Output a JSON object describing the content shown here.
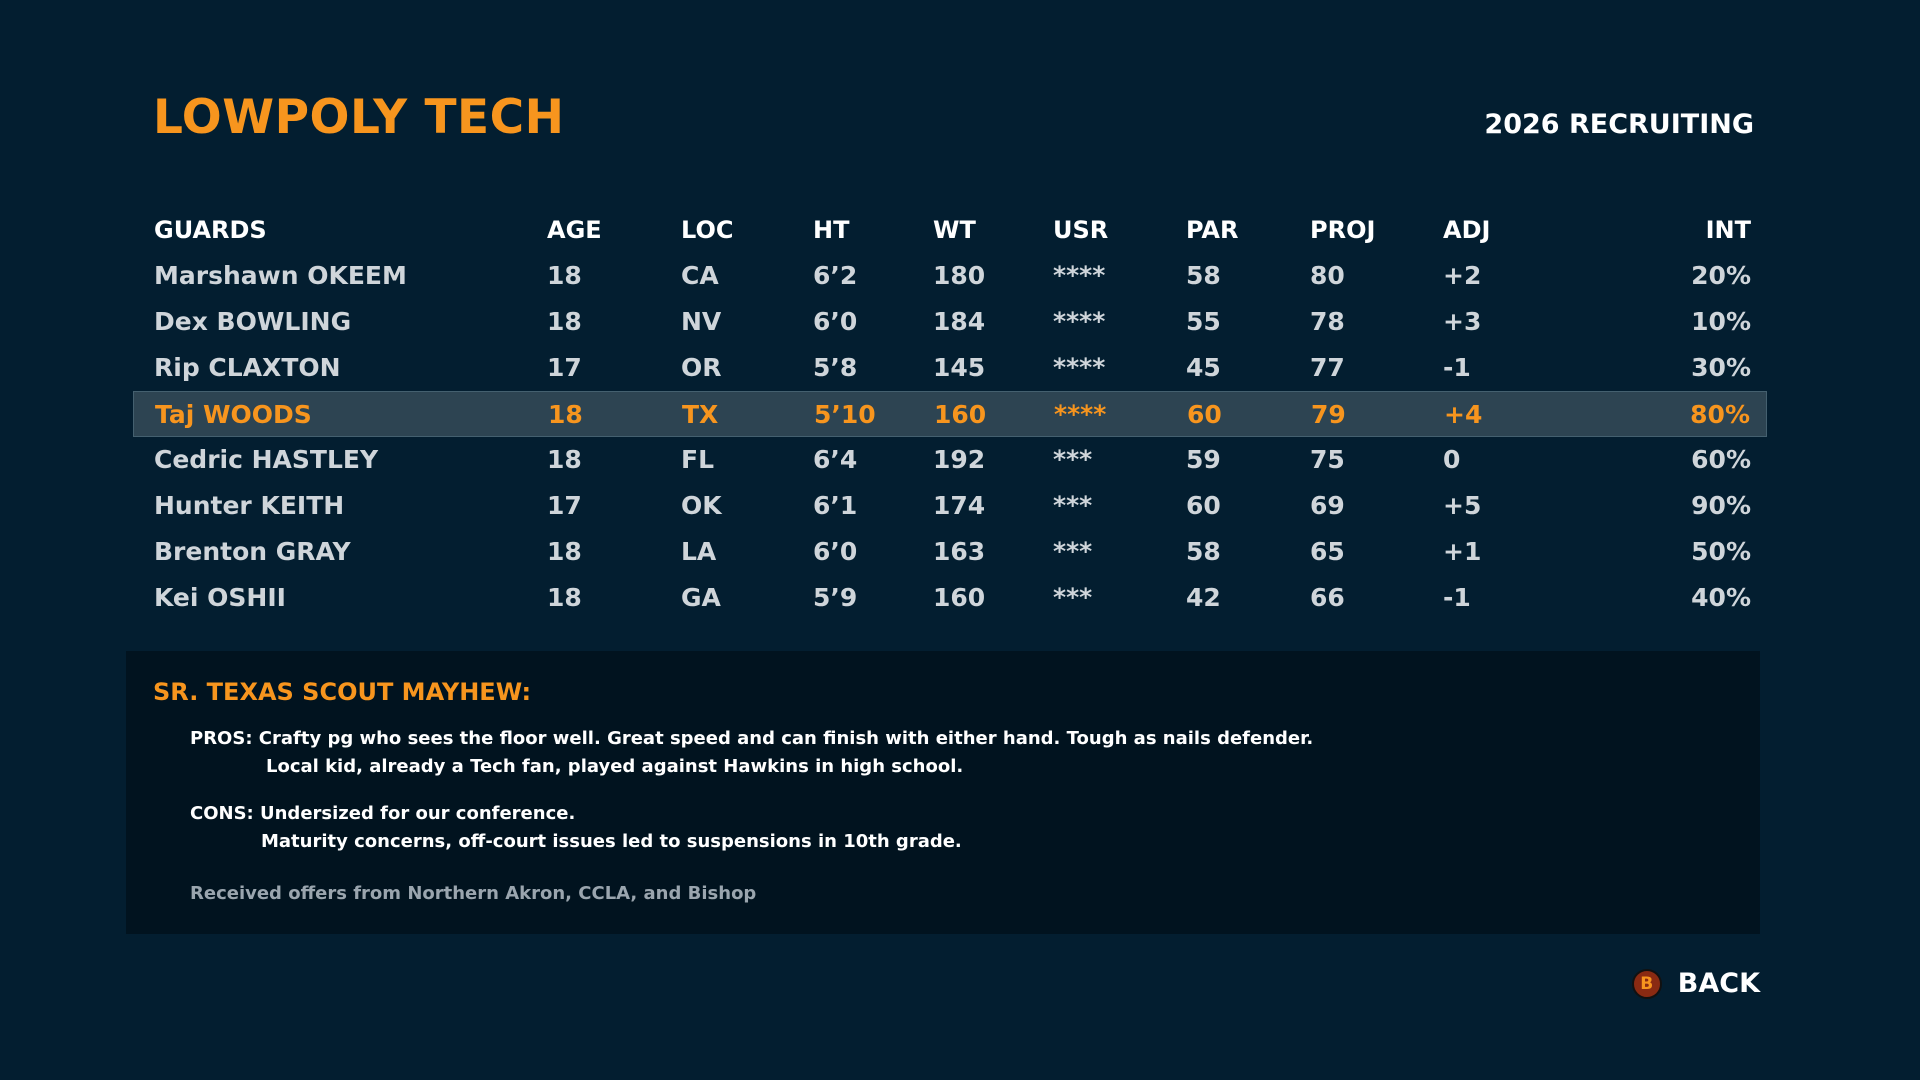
{
  "header": {
    "team": "LOWPOLY TECH",
    "season": "2026 RECRUITING"
  },
  "table": {
    "columns": [
      "GUARDS",
      "AGE",
      "LOC",
      "HT",
      "WT",
      "USR",
      "PAR",
      "PROJ",
      "ADJ",
      "INT"
    ],
    "selected_index": 3,
    "rows": [
      [
        "Marshawn OKEEM",
        "18",
        "CA",
        "6’2",
        "180",
        "****",
        "58",
        "80",
        "+2",
        "20%"
      ],
      [
        "Dex BOWLING",
        "18",
        "NV",
        "6’0",
        "184",
        "****",
        "55",
        "78",
        "+3",
        "10%"
      ],
      [
        "Rip CLAXTON",
        "17",
        "OR",
        "5’8",
        "145",
        "****",
        "45",
        "77",
        "-1",
        "30%"
      ],
      [
        "Taj WOODS",
        "18",
        "TX",
        "5’10",
        "160",
        "****",
        "60",
        "79",
        "+4",
        "80%"
      ],
      [
        "Cedric HASTLEY",
        "18",
        "FL",
        "6’4",
        "192",
        "***",
        "59",
        "75",
        "0",
        "60%"
      ],
      [
        "Hunter KEITH",
        "17",
        "OK",
        "6’1",
        "174",
        "***",
        "60",
        "69",
        "+5",
        "90%"
      ],
      [
        "Brenton GRAY",
        "18",
        "LA",
        "6’0",
        "163",
        "***",
        "58",
        "65",
        "+1",
        "50%"
      ],
      [
        "Kei OSHII",
        "18",
        "GA",
        "5’9",
        "160",
        "***",
        "42",
        "66",
        "-1",
        "40%"
      ]
    ]
  },
  "scout": {
    "title": "SR. TEXAS SCOUT MAYHEW:",
    "pros_line1": "PROS: Crafty pg who sees the floor well. Great speed and can finish with either hand. Tough as nails defender.",
    "pros_line2": "Local kid, already a Tech fan, played against Hawkins in high school.",
    "cons_line1": "CONS: Undersized for our conference.",
    "cons_line2": "Maturity concerns, off-court issues led to suspensions in 10th grade.",
    "offers": "Received offers from Northern Akron, CCLA, and Bishop"
  },
  "footer": {
    "button_glyph": "B",
    "back_label": "BACK",
    "icon": "b-button-icon"
  },
  "colors": {
    "background": "#031e30",
    "accent": "#f7951e",
    "selected_row": "#2d4452",
    "panel": "#01131f"
  }
}
